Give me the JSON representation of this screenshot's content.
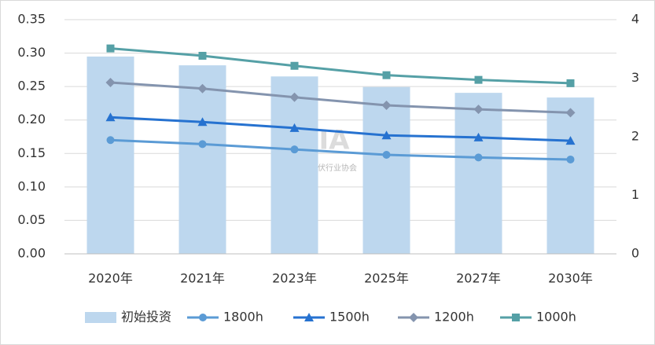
{
  "chart_data": {
    "type": "bar_line",
    "categories": [
      "2020年",
      "2021年",
      "2023年",
      "2025年",
      "2027年",
      "2030年"
    ],
    "watermark": "CPIA",
    "watermark_subtitle": "中国光伏行业协会",
    "series": [
      {
        "name": "初始投资",
        "type": "bar",
        "axis": "y2",
        "color": "#bdd7ee",
        "values": [
          3.37,
          3.22,
          3.03,
          2.85,
          2.75,
          2.67
        ]
      },
      {
        "name": "1800h",
        "type": "line",
        "marker": "circle",
        "color": "#5b9bd5",
        "values": [
          0.17,
          0.164,
          0.156,
          0.148,
          0.144,
          0.141
        ]
      },
      {
        "name": "1500h",
        "type": "line",
        "marker": "triangle",
        "color": "#2672d0",
        "values": [
          0.204,
          0.197,
          0.188,
          0.177,
          0.174,
          0.169
        ]
      },
      {
        "name": "1200h",
        "type": "line",
        "marker": "diamond",
        "color": "#8494ae",
        "values": [
          0.256,
          0.247,
          0.234,
          0.222,
          0.216,
          0.211
        ]
      },
      {
        "name": "1000h",
        "type": "line",
        "marker": "square",
        "color": "#55a0a6",
        "values": [
          0.307,
          0.296,
          0.281,
          0.267,
          0.26,
          0.255
        ]
      }
    ],
    "ylim": [
      0,
      0.35
    ],
    "yticks": [
      {
        "value": 0,
        "label": "0.00"
      },
      {
        "value": 0.05,
        "label": "0.05"
      },
      {
        "value": 0.1,
        "label": "0.10"
      },
      {
        "value": 0.15,
        "label": "0.15"
      },
      {
        "value": 0.2,
        "label": "0.20"
      },
      {
        "value": 0.25,
        "label": "0.25"
      },
      {
        "value": 0.3,
        "label": "0.30"
      },
      {
        "value": 0.35,
        "label": "0.35"
      }
    ],
    "y2lim": [
      0,
      4
    ],
    "y2ticks": [
      0,
      1,
      2,
      3,
      4
    ],
    "grid": true
  }
}
